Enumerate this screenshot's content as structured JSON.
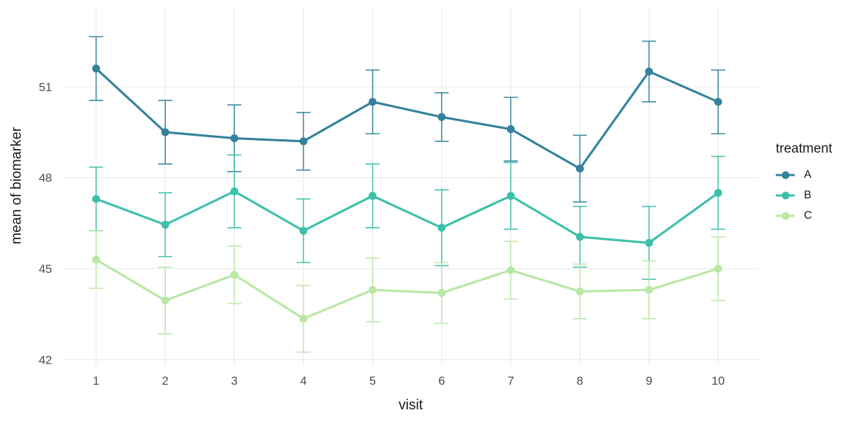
{
  "chart_data": {
    "type": "line",
    "xlabel": "visit",
    "ylabel": "mean of biomarker",
    "legend_title": "treatment",
    "legend_position": "right",
    "grid": "major-only",
    "background": "#ffffff",
    "gridline_color": "#ebebeb",
    "tick_label_color": "#4d4d4d",
    "x": [
      1,
      2,
      3,
      4,
      5,
      6,
      7,
      8,
      9,
      10
    ],
    "xticks": [
      1,
      2,
      3,
      4,
      5,
      6,
      7,
      8,
      9,
      10
    ],
    "yticks": [
      42,
      45,
      48,
      51
    ],
    "xlim": [
      0.505,
      10.6
    ],
    "ylim": [
      41.8,
      53.65
    ],
    "series": [
      {
        "name": "A",
        "color": "#34829c",
        "values": [
          51.6,
          49.5,
          49.3,
          49.2,
          50.5,
          50.0,
          49.6,
          48.3,
          51.5,
          50.5
        ],
        "errors": [
          1.05,
          1.05,
          1.1,
          0.95,
          1.05,
          0.8,
          1.05,
          1.1,
          1.0,
          1.05
        ]
      },
      {
        "name": "B",
        "color": "#3dc0ab",
        "values": [
          47.3,
          46.45,
          47.55,
          46.25,
          47.4,
          46.35,
          47.4,
          46.05,
          45.85,
          47.5
        ],
        "errors": [
          1.05,
          1.05,
          1.2,
          1.05,
          1.05,
          1.25,
          1.1,
          1.0,
          1.2,
          1.2
        ]
      },
      {
        "name": "C",
        "color": "#b9e7a4",
        "values": [
          45.3,
          43.95,
          44.8,
          43.35,
          44.3,
          44.2,
          44.95,
          44.25,
          44.3,
          45.0
        ],
        "errors": [
          0.95,
          1.1,
          0.95,
          1.1,
          1.05,
          1.0,
          0.95,
          0.9,
          0.95,
          1.05
        ]
      }
    ]
  }
}
